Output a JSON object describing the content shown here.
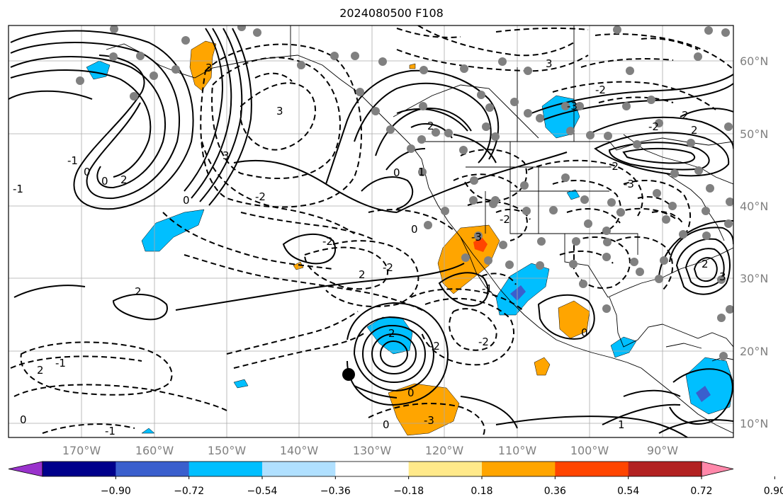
{
  "title": "2024080500 F108",
  "map": {
    "lon_ticks": [
      "170°W",
      "160°W",
      "150°W",
      "140°W",
      "130°W",
      "120°W",
      "110°W",
      "100°W",
      "90°W"
    ],
    "lat_ticks": [
      "60°N",
      "50°N",
      "40°N",
      "30°N",
      "20°N",
      "10°N"
    ],
    "tick_color": "#808080",
    "gridlines": true,
    "contour_labels": [
      "3",
      "-2",
      "-3",
      "-2",
      "2",
      "2",
      "3",
      "-1",
      "0",
      "0",
      "2",
      "3",
      "-2",
      "-2",
      "-2",
      "2",
      "-3",
      "-2",
      "-2",
      "1",
      "2",
      "0",
      "0",
      "2",
      "-2",
      "2",
      "0",
      "-1",
      "0",
      "-1",
      "0",
      "2",
      "-1",
      "0",
      "-1",
      "0",
      "1",
      "3",
      "2",
      "3",
      "-3",
      "-2",
      "-3"
    ],
    "shading": {
      "orange_color": "#ffa500",
      "deep_orange_color": "#ff4500",
      "cyan_color": "#00bfff",
      "blue_color": "#3a5fcd",
      "light_blue_color": "#b0e0ff"
    }
  },
  "colorbar": {
    "ticks": [
      "−0.90",
      "−0.72",
      "−0.54",
      "−0.36",
      "−0.18",
      "0.18",
      "0.36",
      "0.54",
      "0.72",
      "0.90"
    ],
    "colors": [
      "#9932cc",
      "#00008b",
      "#3a5fcd",
      "#00bfff",
      "#b0e0ff",
      "#ffffff",
      "#ffe98a",
      "#ffa500",
      "#ff4500",
      "#b22222",
      "#ff88aa"
    ]
  }
}
